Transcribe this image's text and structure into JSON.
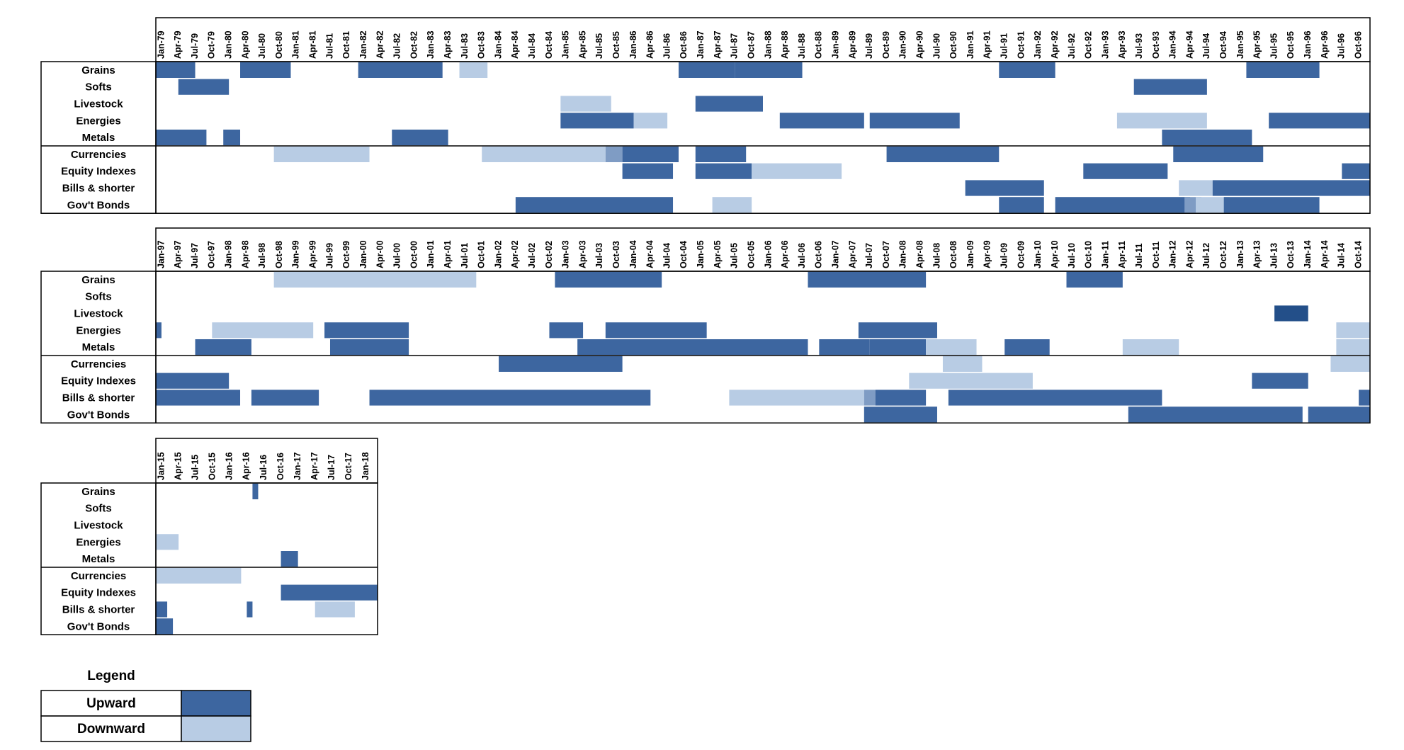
{
  "chart_data": {
    "type": "heatmap",
    "title": "",
    "categories": [
      "Grains",
      "Softs",
      "Livestock",
      "Energies",
      "Metals",
      "Currencies",
      "Equity Indexes",
      "Bills & shorter",
      "Gov't Bonds"
    ],
    "groups": [
      [
        "Grains",
        "Softs",
        "Livestock",
        "Energies",
        "Metals"
      ],
      [
        "Currencies",
        "Equity Indexes",
        "Bills & shorter",
        "Gov't Bonds"
      ]
    ],
    "colors": {
      "Upward": "#3d66a0",
      "Downward": "#b8cce4",
      "Overlap": "#7f9cc4",
      "Strong": "#234f89"
    },
    "legend": {
      "title": "Legend",
      "placement": "bottom-left",
      "entries": [
        {
          "label": "Upward",
          "color": "#3d66a0"
        },
        {
          "label": "Downward",
          "color": "#b8cce4"
        }
      ]
    },
    "panels": [
      {
        "start": "1979-01",
        "end": "1996-12",
        "x_tick_labels": [
          "Jan-79",
          "Apr-79",
          "Jul-79",
          "Oct-79",
          "Jan-80",
          "Apr-80",
          "Jul-80",
          "Oct-80",
          "Jan-81",
          "Apr-81",
          "Jul-81",
          "Oct-81",
          "Jan-82",
          "Apr-82",
          "Jul-82",
          "Oct-82",
          "Jan-83",
          "Apr-83",
          "Jul-83",
          "Oct-83",
          "Jan-84",
          "Apr-84",
          "Jul-84",
          "Oct-84",
          "Jan-85",
          "Apr-85",
          "Jul-85",
          "Oct-85",
          "Jan-86",
          "Apr-86",
          "Jul-86",
          "Oct-86",
          "Jan-87",
          "Apr-87",
          "Jul-87",
          "Oct-87",
          "Jan-88",
          "Apr-88",
          "Jul-88",
          "Oct-88",
          "Jan-89",
          "Apr-89",
          "Jul-89",
          "Oct-89",
          "Jan-90",
          "Apr-90",
          "Jul-90",
          "Oct-90",
          "Jan-91",
          "Apr-91",
          "Jul-91",
          "Oct-91",
          "Jan-92",
          "Apr-92",
          "Jul-92",
          "Oct-92",
          "Jan-93",
          "Apr-93",
          "Jul-93",
          "Oct-93",
          "Jan-94",
          "Apr-94",
          "Jul-94",
          "Oct-94",
          "Jan-95",
          "Apr-95",
          "Jul-95",
          "Oct-95",
          "Jan-96",
          "Apr-96",
          "Jul-96",
          "Oct-96"
        ],
        "rows": {
          "Grains": [
            {
              "start": "1979-01",
              "end": "1979-07",
              "trend": "Upward"
            },
            {
              "start": "1980-04",
              "end": "1980-12",
              "trend": "Upward"
            },
            {
              "start": "1982-01",
              "end": "1983-03",
              "trend": "Upward"
            },
            {
              "start": "1983-07",
              "end": "1983-11",
              "trend": "Downward"
            },
            {
              "start": "1986-10",
              "end": "1987-07",
              "trend": "Upward"
            },
            {
              "start": "1987-08",
              "end": "1988-07",
              "trend": "Upward"
            },
            {
              "start": "1991-07",
              "end": "1992-04",
              "trend": "Upward"
            },
            {
              "start": "1995-03",
              "end": "1996-03",
              "trend": "Upward"
            }
          ],
          "Softs": [
            {
              "start": "1979-05",
              "end": "1980-01",
              "trend": "Upward"
            },
            {
              "start": "1993-07",
              "end": "1994-07",
              "trend": "Upward"
            }
          ],
          "Livestock": [
            {
              "start": "1985-01",
              "end": "1985-09",
              "trend": "Downward"
            },
            {
              "start": "1987-01",
              "end": "1987-12",
              "trend": "Upward"
            }
          ],
          "Energies": [
            {
              "start": "1985-01",
              "end": "1986-01",
              "trend": "Upward"
            },
            {
              "start": "1986-02",
              "end": "1986-07",
              "trend": "Downward"
            },
            {
              "start": "1988-04",
              "end": "1989-06",
              "trend": "Upward"
            },
            {
              "start": "1989-08",
              "end": "1990-11",
              "trend": "Upward"
            },
            {
              "start": "1993-04",
              "end": "1994-07",
              "trend": "Downward"
            },
            {
              "start": "1995-07",
              "end": "1996-12",
              "trend": "Upward"
            }
          ],
          "Metals": [
            {
              "start": "1979-01",
              "end": "1979-09",
              "trend": "Upward"
            },
            {
              "start": "1980-01",
              "end": "1980-03",
              "trend": "Upward"
            },
            {
              "start": "1982-07",
              "end": "1983-04",
              "trend": "Upward"
            },
            {
              "start": "1993-12",
              "end": "1995-03",
              "trend": "Upward"
            }
          ],
          "Currencies": [
            {
              "start": "1980-10",
              "end": "1982-02",
              "trend": "Downward"
            },
            {
              "start": "1983-11",
              "end": "1985-08",
              "trend": "Downward"
            },
            {
              "start": "1985-09",
              "end": "1985-11",
              "trend": "Overlap"
            },
            {
              "start": "1985-12",
              "end": "1986-09",
              "trend": "Upward"
            },
            {
              "start": "1987-01",
              "end": "1987-09",
              "trend": "Upward"
            },
            {
              "start": "1989-11",
              "end": "1991-06",
              "trend": "Upward"
            },
            {
              "start": "1994-02",
              "end": "1995-05",
              "trend": "Upward"
            }
          ],
          "Equity Indexes": [
            {
              "start": "1985-12",
              "end": "1986-08",
              "trend": "Upward"
            },
            {
              "start": "1987-01",
              "end": "1987-10",
              "trend": "Upward"
            },
            {
              "start": "1987-11",
              "end": "1989-02",
              "trend": "Downward"
            },
            {
              "start": "1992-10",
              "end": "1993-12",
              "trend": "Upward"
            },
            {
              "start": "1996-08",
              "end": "1996-12",
              "trend": "Upward"
            }
          ],
          "Bills & shorter": [
            {
              "start": "1991-01",
              "end": "1992-02",
              "trend": "Upward"
            },
            {
              "start": "1994-03",
              "end": "1994-08",
              "trend": "Downward"
            },
            {
              "start": "1994-09",
              "end": "1996-12",
              "trend": "Upward"
            }
          ],
          "Gov't Bonds": [
            {
              "start": "1984-05",
              "end": "1986-08",
              "trend": "Upward"
            },
            {
              "start": "1987-04",
              "end": "1987-10",
              "trend": "Downward"
            },
            {
              "start": "1991-07",
              "end": "1992-02",
              "trend": "Upward"
            },
            {
              "start": "1992-05",
              "end": "1994-04",
              "trend": "Upward"
            },
            {
              "start": "1994-04",
              "end": "1994-06",
              "trend": "Overlap"
            },
            {
              "start": "1994-06",
              "end": "1994-11",
              "trend": "Downward"
            },
            {
              "start": "1994-11",
              "end": "1996-03",
              "trend": "Upward"
            }
          ]
        }
      },
      {
        "start": "1997-01",
        "end": "2014-12",
        "x_tick_labels": [
          "Jan-97",
          "Apr-97",
          "Jul-97",
          "Oct-97",
          "Jan-98",
          "Apr-98",
          "Jul-98",
          "Oct-98",
          "Jan-99",
          "Apr-99",
          "Jul-99",
          "Oct-99",
          "Jan-00",
          "Apr-00",
          "Jul-00",
          "Oct-00",
          "Jan-01",
          "Apr-01",
          "Jul-01",
          "Oct-01",
          "Jan-02",
          "Apr-02",
          "Jul-02",
          "Oct-02",
          "Jan-03",
          "Apr-03",
          "Jul-03",
          "Oct-03",
          "Jan-04",
          "Apr-04",
          "Jul-04",
          "Oct-04",
          "Jan-05",
          "Apr-05",
          "Jul-05",
          "Oct-05",
          "Jan-06",
          "Apr-06",
          "Jul-06",
          "Oct-06",
          "Jan-07",
          "Apr-07",
          "Jul-07",
          "Oct-07",
          "Jan-08",
          "Apr-08",
          "Jul-08",
          "Oct-08",
          "Jan-09",
          "Apr-09",
          "Jul-09",
          "Oct-09",
          "Jan-10",
          "Apr-10",
          "Jul-10",
          "Oct-10",
          "Jan-11",
          "Apr-11",
          "Jul-11",
          "Oct-11",
          "Jan-12",
          "Apr-12",
          "Jul-12",
          "Oct-12",
          "Jan-13",
          "Apr-13",
          "Jul-13",
          "Oct-13",
          "Jan-14",
          "Apr-14",
          "Jul-14",
          "Oct-14"
        ],
        "rows": {
          "Grains": [
            {
              "start": "1998-10",
              "end": "2001-09",
              "trend": "Downward"
            },
            {
              "start": "2002-12",
              "end": "2004-06",
              "trend": "Upward"
            },
            {
              "start": "2006-09",
              "end": "2008-05",
              "trend": "Upward"
            },
            {
              "start": "2010-07",
              "end": "2011-04",
              "trend": "Upward"
            }
          ],
          "Softs": [],
          "Livestock": [
            {
              "start": "2013-08",
              "end": "2014-01",
              "trend": "Strong"
            }
          ],
          "Energies": [
            {
              "start": "1997-01",
              "end": "1997-01",
              "trend": "Upward"
            },
            {
              "start": "1997-11",
              "end": "1999-04",
              "trend": "Downward"
            },
            {
              "start": "1999-07",
              "end": "2000-09",
              "trend": "Upward"
            },
            {
              "start": "2002-11",
              "end": "2003-04",
              "trend": "Upward"
            },
            {
              "start": "2003-09",
              "end": "2005-02",
              "trend": "Upward"
            },
            {
              "start": "2007-06",
              "end": "2008-07",
              "trend": "Upward"
            },
            {
              "start": "2014-07",
              "end": "2014-12",
              "trend": "Downward"
            }
          ],
          "Metals": [
            {
              "start": "1997-08",
              "end": "1998-05",
              "trend": "Upward"
            },
            {
              "start": "1999-08",
              "end": "2000-09",
              "trend": "Upward"
            },
            {
              "start": "2003-04",
              "end": "2006-08",
              "trend": "Upward"
            },
            {
              "start": "2006-11",
              "end": "2007-07",
              "trend": "Upward"
            },
            {
              "start": "2007-08",
              "end": "2008-05",
              "trend": "Upward"
            },
            {
              "start": "2008-06",
              "end": "2009-02",
              "trend": "Downward"
            },
            {
              "start": "2009-08",
              "end": "2010-03",
              "trend": "Upward"
            },
            {
              "start": "2011-05",
              "end": "2012-02",
              "trend": "Downward"
            },
            {
              "start": "2014-07",
              "end": "2014-12",
              "trend": "Downward"
            }
          ],
          "Currencies": [
            {
              "start": "2002-02",
              "end": "2003-11",
              "trend": "Upward"
            },
            {
              "start": "2008-09",
              "end": "2009-03",
              "trend": "Downward"
            },
            {
              "start": "2014-06",
              "end": "2014-12",
              "trend": "Downward"
            }
          ],
          "Equity Indexes": [
            {
              "start": "1997-01",
              "end": "1998-01",
              "trend": "Upward"
            },
            {
              "start": "2008-03",
              "end": "2009-12",
              "trend": "Downward"
            },
            {
              "start": "2013-04",
              "end": "2014-01",
              "trend": "Upward"
            }
          ],
          "Bills & shorter": [
            {
              "start": "1997-01",
              "end": "1998-03",
              "trend": "Upward"
            },
            {
              "start": "1998-06",
              "end": "1999-05",
              "trend": "Upward"
            },
            {
              "start": "2000-03",
              "end": "2004-04",
              "trend": "Upward"
            },
            {
              "start": "2005-07",
              "end": "2007-06",
              "trend": "Downward"
            },
            {
              "start": "2007-07",
              "end": "2007-08",
              "trend": "Overlap"
            },
            {
              "start": "2007-09",
              "end": "2008-05",
              "trend": "Upward"
            },
            {
              "start": "2008-10",
              "end": "2011-11",
              "trend": "Upward"
            },
            {
              "start": "2014-11",
              "end": "2014-12",
              "trend": "Upward"
            }
          ],
          "Gov't Bonds": [
            {
              "start": "2007-07",
              "end": "2008-07",
              "trend": "Upward"
            },
            {
              "start": "2011-06",
              "end": "2013-12",
              "trend": "Upward"
            },
            {
              "start": "2014-02",
              "end": "2014-12",
              "trend": "Upward"
            }
          ]
        }
      },
      {
        "start": "2015-01",
        "end": "2018-03",
        "x_tick_labels": [
          "Jan-15",
          "Apr-15",
          "Jul-15",
          "Oct-15",
          "Jan-16",
          "Apr-16",
          "Jul-16",
          "Oct-16",
          "Jan-17",
          "Apr-17",
          "Jul-17",
          "Oct-17",
          "Jan-18"
        ],
        "rows": {
          "Grains": [
            {
              "start": "2016-06",
              "end": "2016-06",
              "trend": "Upward"
            }
          ],
          "Softs": [],
          "Livestock": [],
          "Energies": [
            {
              "start": "2015-01",
              "end": "2015-04",
              "trend": "Downward"
            }
          ],
          "Metals": [
            {
              "start": "2016-11",
              "end": "2017-01",
              "trend": "Upward"
            }
          ],
          "Currencies": [
            {
              "start": "2015-01",
              "end": "2016-03",
              "trend": "Downward"
            }
          ],
          "Equity Indexes": [
            {
              "start": "2016-11",
              "end": "2018-03",
              "trend": "Upward"
            }
          ],
          "Bills & shorter": [
            {
              "start": "2015-01",
              "end": "2015-02",
              "trend": "Upward"
            },
            {
              "start": "2016-05",
              "end": "2016-05",
              "trend": "Upward"
            },
            {
              "start": "2017-05",
              "end": "2017-11",
              "trend": "Downward"
            }
          ],
          "Gov't Bonds": [
            {
              "start": "2015-01",
              "end": "2015-03",
              "trend": "Upward"
            }
          ]
        }
      }
    ]
  }
}
